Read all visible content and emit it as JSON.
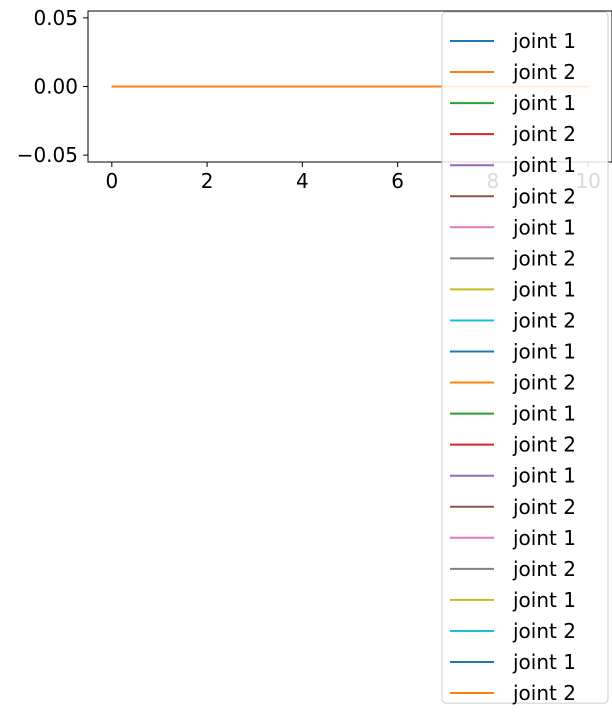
{
  "chart_data": {
    "type": "line",
    "title": "",
    "xlabel": "",
    "ylabel": "",
    "xlim": [
      -0.5,
      10.5
    ],
    "ylim": [
      -0.055,
      0.055
    ],
    "x_ticks": [
      0,
      2,
      4,
      6,
      8,
      10
    ],
    "y_ticks": [
      0.05,
      0.0,
      -0.05
    ],
    "x_tick_labels": [
      "0",
      "2",
      "4",
      "6",
      "8",
      "10"
    ],
    "y_tick_labels": [
      "0.05",
      "0.00",
      "−0.05"
    ],
    "grid": false,
    "legend_position": "upper right",
    "series": [
      {
        "name": "joint 1",
        "color": "#1f77b4",
        "x": [
          0,
          10
        ],
        "y": [
          0,
          0
        ]
      },
      {
        "name": "joint 2",
        "color": "#ff7f0e",
        "x": [
          0,
          10
        ],
        "y": [
          0,
          0
        ]
      },
      {
        "name": "joint 1",
        "color": "#2ca02c",
        "x": [
          0,
          10
        ],
        "y": [
          0,
          0
        ]
      },
      {
        "name": "joint 2",
        "color": "#d62728",
        "x": [
          0,
          10
        ],
        "y": [
          0,
          0
        ]
      },
      {
        "name": "joint 1",
        "color": "#9467bd",
        "x": [
          0,
          10
        ],
        "y": [
          0,
          0
        ]
      },
      {
        "name": "joint 2",
        "color": "#8c564b",
        "x": [
          0,
          10
        ],
        "y": [
          0,
          0
        ]
      },
      {
        "name": "joint 1",
        "color": "#e377c2",
        "x": [
          0,
          10
        ],
        "y": [
          0,
          0
        ]
      },
      {
        "name": "joint 2",
        "color": "#7f7f7f",
        "x": [
          0,
          10
        ],
        "y": [
          0,
          0
        ]
      },
      {
        "name": "joint 1",
        "color": "#bcbd22",
        "x": [
          0,
          10
        ],
        "y": [
          0,
          0
        ]
      },
      {
        "name": "joint 2",
        "color": "#17becf",
        "x": [
          0,
          10
        ],
        "y": [
          0,
          0
        ]
      },
      {
        "name": "joint 1",
        "color": "#1f77b4",
        "x": [
          0,
          10
        ],
        "y": [
          0,
          0
        ]
      },
      {
        "name": "joint 2",
        "color": "#ff7f0e",
        "x": [
          0,
          10
        ],
        "y": [
          0,
          0
        ]
      },
      {
        "name": "joint 1",
        "color": "#2ca02c",
        "x": [
          0,
          10
        ],
        "y": [
          0,
          0
        ]
      },
      {
        "name": "joint 2",
        "color": "#d62728",
        "x": [
          0,
          10
        ],
        "y": [
          0,
          0
        ]
      },
      {
        "name": "joint 1",
        "color": "#9467bd",
        "x": [
          0,
          10
        ],
        "y": [
          0,
          0
        ]
      },
      {
        "name": "joint 2",
        "color": "#8c564b",
        "x": [
          0,
          10
        ],
        "y": [
          0,
          0
        ]
      },
      {
        "name": "joint 1",
        "color": "#e377c2",
        "x": [
          0,
          10
        ],
        "y": [
          0,
          0
        ]
      },
      {
        "name": "joint 2",
        "color": "#7f7f7f",
        "x": [
          0,
          10
        ],
        "y": [
          0,
          0
        ]
      },
      {
        "name": "joint 1",
        "color": "#bcbd22",
        "x": [
          0,
          10
        ],
        "y": [
          0,
          0
        ]
      },
      {
        "name": "joint 2",
        "color": "#17becf",
        "x": [
          0,
          10
        ],
        "y": [
          0,
          0
        ]
      },
      {
        "name": "joint 1",
        "color": "#1f77b4",
        "x": [
          0,
          10
        ],
        "y": [
          0,
          0
        ]
      },
      {
        "name": "joint 2",
        "color": "#ff7f0e",
        "x": [
          0,
          10
        ],
        "y": [
          0,
          0
        ]
      }
    ]
  }
}
